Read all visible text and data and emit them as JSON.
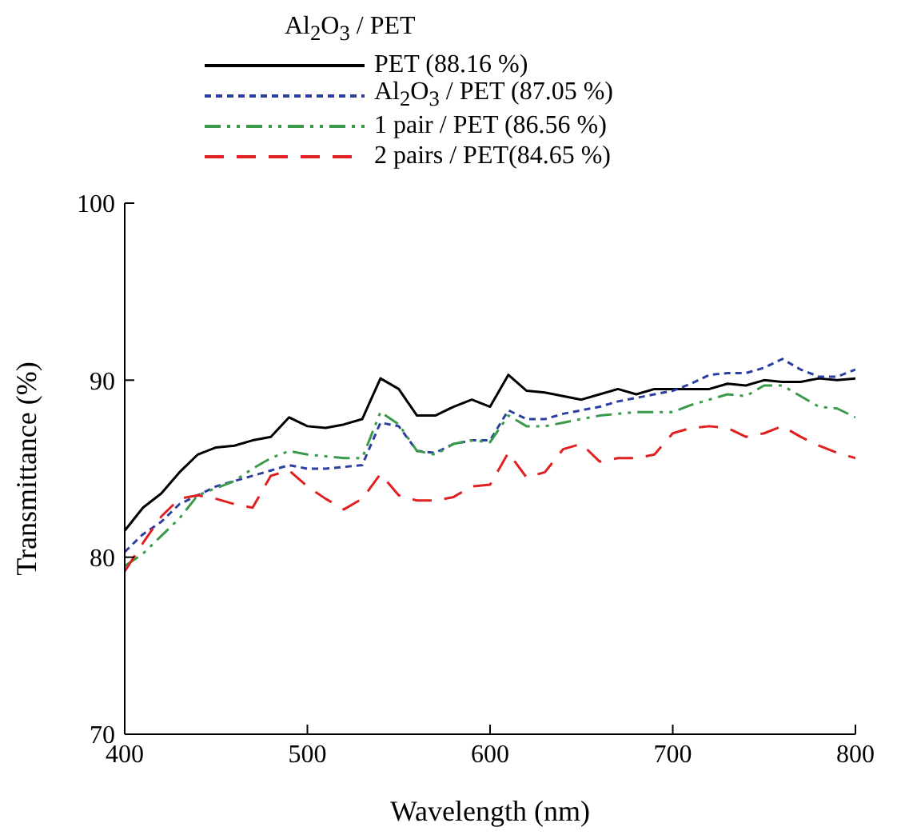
{
  "chart_data": {
    "type": "line",
    "legend_title": "Al$_{2}$O$_{3}$ / PET",
    "xlabel": "Wavelength (nm)",
    "ylabel": "Transmittance (%)",
    "x": [
      400,
      410,
      420,
      430,
      440,
      450,
      460,
      470,
      480,
      490,
      500,
      510,
      520,
      530,
      540,
      550,
      560,
      570,
      580,
      590,
      600,
      610,
      620,
      630,
      640,
      650,
      660,
      670,
      680,
      690,
      700,
      710,
      720,
      730,
      740,
      750,
      760,
      770,
      780,
      790,
      800
    ],
    "series": [
      {
        "name": "PET (88.16 %)",
        "color": "#000000",
        "line_style": "solid",
        "values": [
          81.5,
          82.8,
          83.6,
          84.8,
          85.8,
          86.2,
          86.3,
          86.6,
          86.8,
          87.9,
          87.4,
          87.3,
          87.5,
          87.8,
          90.1,
          89.5,
          88.0,
          88.0,
          88.5,
          88.9,
          88.5,
          90.3,
          89.4,
          89.3,
          89.1,
          88.9,
          89.2,
          89.5,
          89.2,
          89.5,
          89.5,
          89.5,
          89.5,
          89.8,
          89.7,
          90.0,
          89.9,
          89.9,
          90.1,
          90.0,
          90.1
        ]
      },
      {
        "name": "Al$_{2}$O$_{3}$ / PET (87.05 %)",
        "color": "#2b3f9e",
        "line_style": "dotted",
        "values": [
          80.3,
          81.3,
          82.0,
          83.0,
          83.5,
          84.0,
          84.3,
          84.6,
          84.9,
          85.2,
          85.0,
          85.0,
          85.1,
          85.2,
          87.6,
          87.4,
          86.0,
          85.9,
          86.4,
          86.6,
          86.6,
          88.3,
          87.8,
          87.8,
          88.1,
          88.3,
          88.5,
          88.8,
          89.0,
          89.2,
          89.4,
          89.8,
          90.3,
          90.4,
          90.4,
          90.7,
          91.2,
          90.6,
          90.2,
          90.2,
          90.6
        ]
      },
      {
        "name": "1 pair / PET  (86.56 %)",
        "color": "#3a9a4a",
        "line_style": "dashdot",
        "values": [
          79.5,
          80.2,
          81.2,
          82.2,
          83.5,
          83.9,
          84.3,
          85.0,
          85.6,
          86.0,
          85.8,
          85.7,
          85.6,
          85.6,
          88.2,
          87.5,
          86.0,
          85.8,
          86.4,
          86.6,
          86.5,
          88.0,
          87.4,
          87.4,
          87.6,
          87.8,
          88.0,
          88.1,
          88.2,
          88.2,
          88.2,
          88.6,
          88.9,
          89.2,
          89.1,
          89.7,
          89.7,
          89.1,
          88.5,
          88.4,
          87.9
        ]
      },
      {
        "name": "2 pairs / PET(84.65 %)",
        "color": "#e02020",
        "line_style": "dashed",
        "values": [
          79.2,
          80.8,
          82.3,
          83.3,
          83.5,
          83.3,
          83.0,
          82.8,
          84.6,
          84.9,
          84.0,
          83.3,
          82.7,
          83.3,
          84.7,
          83.5,
          83.2,
          83.2,
          83.4,
          84.0,
          84.1,
          85.9,
          84.5,
          84.8,
          86.1,
          86.4,
          85.4,
          85.6,
          85.6,
          85.8,
          87.0,
          87.3,
          87.4,
          87.3,
          86.8,
          87.0,
          87.4,
          86.8,
          86.3,
          85.9,
          85.6
        ]
      }
    ],
    "xlim": [
      400,
      800
    ],
    "xticks": [
      400,
      500,
      600,
      700,
      800
    ],
    "ylim": [
      70,
      100
    ],
    "yticks": [
      70,
      80,
      90,
      100
    ],
    "grid": false,
    "legend": "top",
    "marker": "none"
  }
}
